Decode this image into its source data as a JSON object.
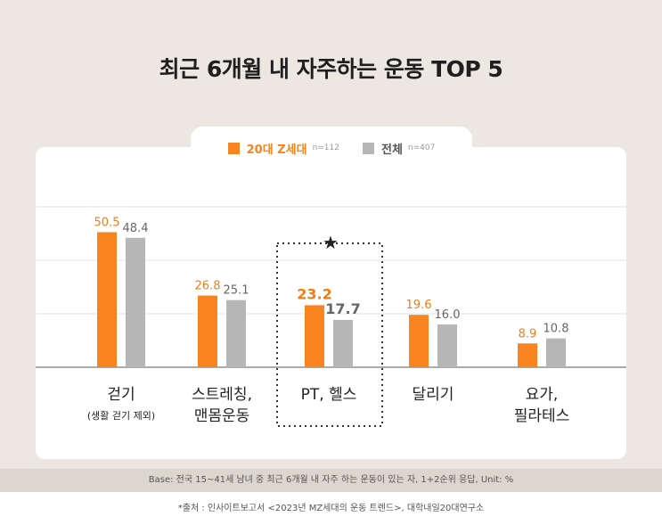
{
  "title": "최근 6개월 내 자주하는 운동 TOP 5",
  "legend": {
    "series1": {
      "label": "20대 Z세대",
      "n": "n=112"
    },
    "series2": {
      "label": "전체",
      "n": "n=407"
    }
  },
  "colors": {
    "series1": "#f7841f",
    "series2": "#b6b6b6",
    "star": "#222222"
  },
  "chart_data": {
    "type": "bar",
    "title": "최근 6개월 내 자주하는 운동 TOP 5",
    "categories": [
      {
        "line1": "걷기",
        "line2": "(생활 걷기 제외)"
      },
      {
        "line1": "스트레칭,",
        "line2": "맨몸운동"
      },
      {
        "line1": "PT, 헬스",
        "line2": ""
      },
      {
        "line1": "달리기",
        "line2": ""
      },
      {
        "line1": "요가,",
        "line2": "필라테스"
      }
    ],
    "series": [
      {
        "name": "20대 Z세대",
        "values": [
          50.5,
          26.8,
          23.2,
          19.6,
          8.9
        ]
      },
      {
        "name": "전체",
        "values": [
          48.4,
          25.1,
          17.7,
          16.0,
          10.8
        ]
      }
    ],
    "value_labels": [
      [
        "50.5",
        "26.8",
        "23.2",
        "19.6",
        "8.9"
      ],
      [
        "48.4",
        "25.1",
        "17.7",
        "16.0",
        "10.8"
      ]
    ],
    "ylim": [
      0,
      70
    ],
    "gridlines": [
      20,
      40,
      60
    ],
    "highlight_index": 2,
    "unit": "%"
  },
  "footer": {
    "base": "Base: 전국 15~41세 남녀 중 최근 6개월 내 자주 하는 운동이 있는 자, 1+2순위 응답, Unit: %",
    "source": "*출처 : 인사이트보고서 <2023년 MZ세대의 운동 트렌드>, 대학내일20대연구소"
  }
}
